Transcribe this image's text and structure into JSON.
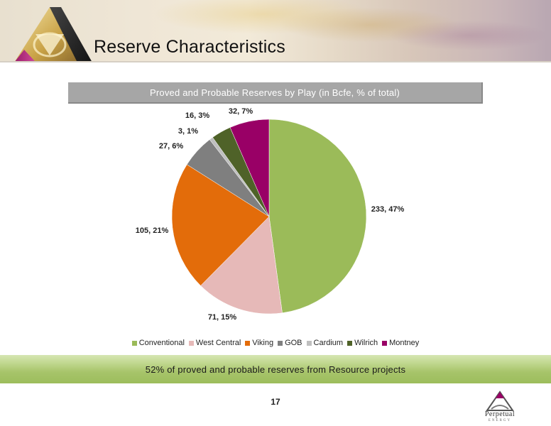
{
  "slide": {
    "title": "Reserve Characteristics",
    "page_number": "17",
    "banner_text": "52% of proved and probable reserves from Resource projects"
  },
  "logo": {
    "name": "Perpetual",
    "tagline": "ENERGY"
  },
  "colors": {
    "conventional": "#9bbb59",
    "west_central": "#e6b9b8",
    "viking": "#e36c0a",
    "gob": "#7f7f7f",
    "cardium": "#bfbfbf",
    "wilrich": "#4f6228",
    "montney": "#990066",
    "banner_green": "#9cbd5c",
    "chart_header_grey": "#a6a6a6"
  },
  "chart_data": {
    "type": "pie",
    "title": "Proved and Probable Reserves by Play (in Bcfe, % of total)",
    "legend_position": "bottom",
    "slices": [
      {
        "name": "Conventional",
        "value": 233,
        "label": "233, 47%"
      },
      {
        "name": "West Central",
        "value": 71,
        "label": "71, 15%"
      },
      {
        "name": "Viking",
        "value": 105,
        "label": "105, 21%"
      },
      {
        "name": "GOB",
        "value": 27,
        "label": "27, 6%"
      },
      {
        "name": "Cardium",
        "value": 3,
        "label": "3, 1%"
      },
      {
        "name": "Wilrich",
        "value": 16,
        "label": "16, 3%"
      },
      {
        "name": "Montney",
        "value": 32,
        "label": "32, 7%"
      }
    ]
  }
}
